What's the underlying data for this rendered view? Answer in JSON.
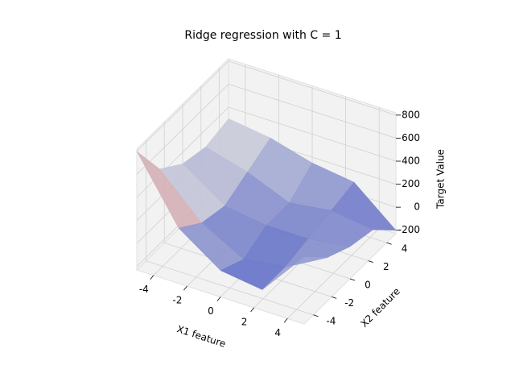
{
  "chart_data": {
    "type": "surface",
    "title": "Ridge regression with C = 1",
    "xlabel": "X1 feature",
    "ylabel": "X2 feature",
    "zlabel": "Target Value",
    "x": [
      -5,
      -2.5,
      0,
      2.5,
      5
    ],
    "y": [
      -5,
      -2.5,
      0,
      2.5,
      5
    ],
    "z": [
      [
        800,
        250,
        0,
        -50,
        350
      ],
      [
        450,
        100,
        -100,
        -50,
        150
      ],
      [
        300,
        50,
        0,
        0,
        50
      ],
      [
        250,
        150,
        0,
        50,
        0
      ],
      [
        300,
        250,
        150,
        100,
        -200
      ]
    ],
    "xlim": [
      -5,
      5
    ],
    "ylim": [
      -5,
      5
    ],
    "zlim": [
      -230,
      820
    ],
    "xticks": [
      -4,
      -2,
      0,
      2,
      4
    ],
    "yticks": [
      -4,
      -2,
      0,
      2,
      4
    ],
    "zticks": [
      -200,
      0,
      200,
      400,
      600,
      800
    ],
    "colormap": "coolwarm",
    "grid": true
  }
}
